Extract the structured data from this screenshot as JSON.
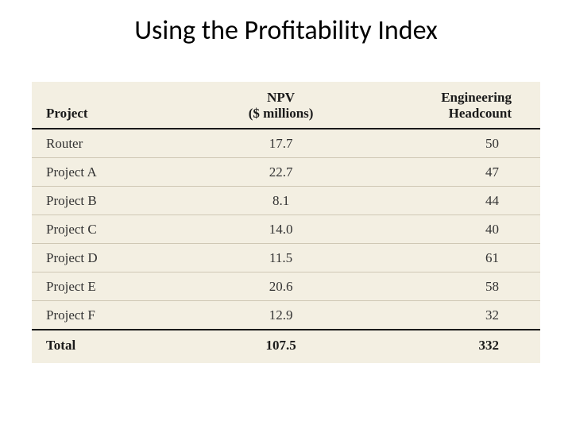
{
  "title": "Using the Profitability Index",
  "table": {
    "background_color": "#f3efe2",
    "header_border_color": "#1a1a1a",
    "row_border_color": "#cfc8b5",
    "font_family": "Georgia",
    "header_fontsize": 17,
    "cell_fontsize": 17,
    "columns": [
      {
        "label": "Project",
        "align": "left"
      },
      {
        "label_line1": "NPV",
        "label_line2": "($ millions)",
        "align": "center"
      },
      {
        "label_line1": "Engineering",
        "label_line2": "Headcount",
        "align": "right"
      }
    ],
    "rows": [
      {
        "project": "Router",
        "npv": "17.7",
        "headcount": "50"
      },
      {
        "project": "Project A",
        "npv": "22.7",
        "headcount": "47"
      },
      {
        "project": "Project B",
        "npv": "8.1",
        "headcount": "44"
      },
      {
        "project": "Project C",
        "npv": "14.0",
        "headcount": "40"
      },
      {
        "project": "Project D",
        "npv": "11.5",
        "headcount": "61"
      },
      {
        "project": "Project E",
        "npv": "20.6",
        "headcount": "58"
      },
      {
        "project": "Project F",
        "npv": "12.9",
        "headcount": "32"
      }
    ],
    "total": {
      "label": "Total",
      "npv": "107.5",
      "headcount": "332"
    }
  }
}
